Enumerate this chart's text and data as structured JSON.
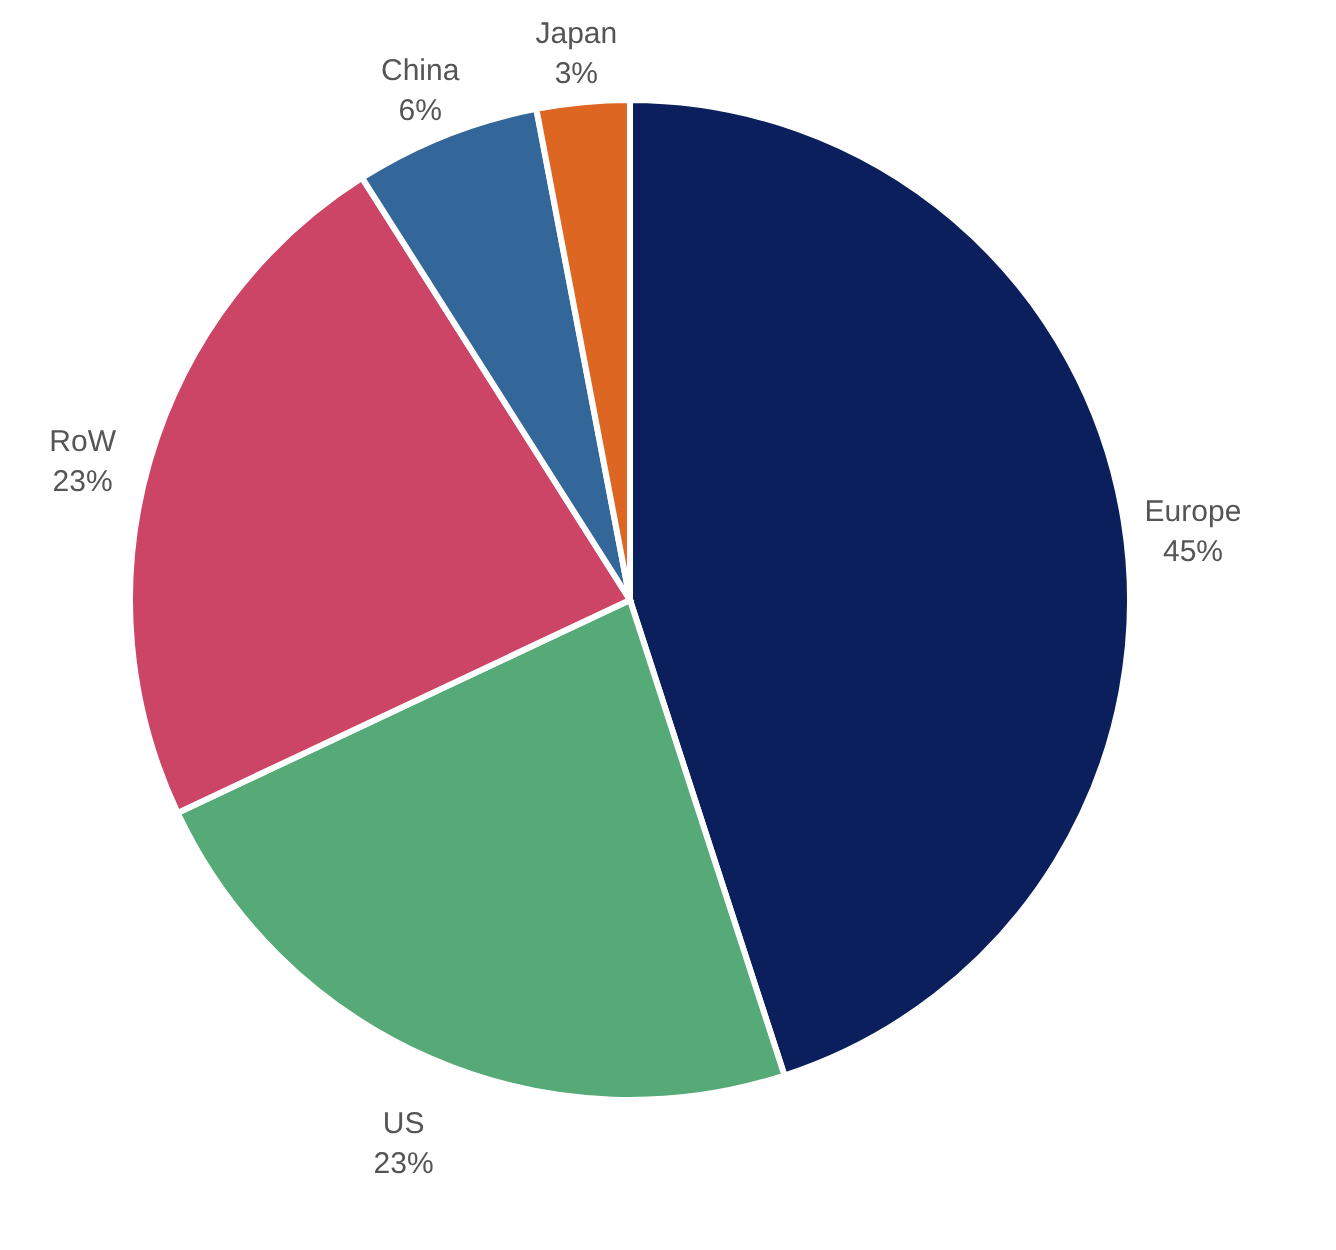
{
  "chart_data": {
    "type": "pie",
    "categories": [
      "Europe",
      "US",
      "RoW",
      "China",
      "Japan"
    ],
    "values": [
      45,
      23,
      23,
      6,
      3
    ],
    "value_labels": [
      "45%",
      "23%",
      "23%",
      "6%",
      "3%"
    ],
    "colors": [
      "#0b1f5c",
      "#55aa77",
      "#cc4466",
      "#336699",
      "#dd6622"
    ],
    "legend": false
  }
}
